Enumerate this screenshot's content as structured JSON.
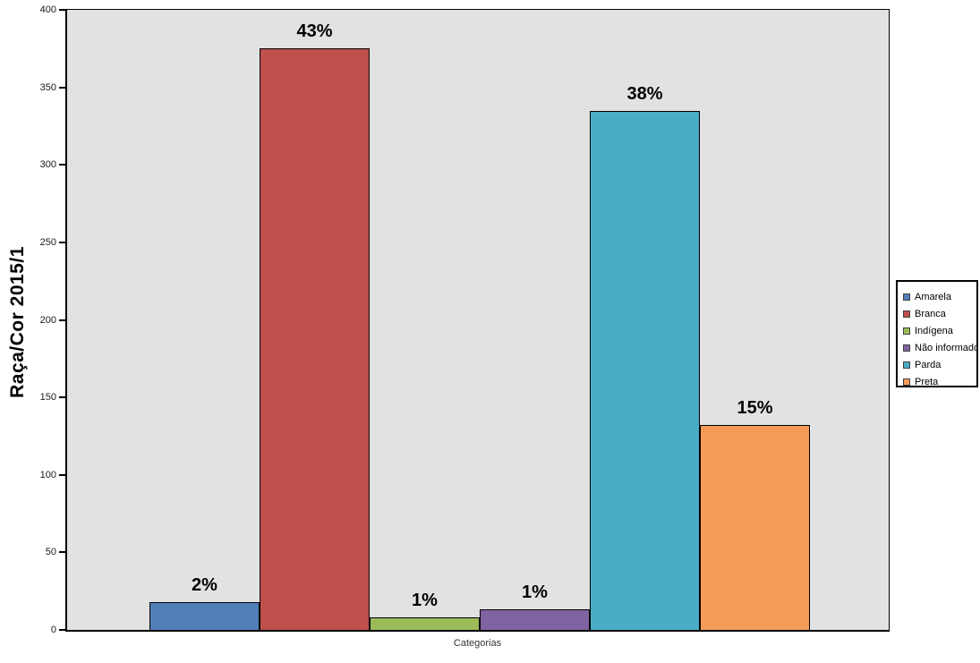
{
  "chart_data": {
    "type": "bar",
    "categories": [
      "Amarela",
      "Branca",
      "Indígena",
      "Não informado",
      "Parda",
      "Preta"
    ],
    "values": [
      18,
      375,
      8,
      13,
      335,
      132
    ],
    "bar_labels": [
      "2%",
      "43%",
      "1%",
      "1%",
      "38%",
      "15%"
    ],
    "colors": [
      "#527FB8",
      "#C0504D",
      "#9BBB59",
      "#8064A2",
      "#4AACC5",
      "#F49B58"
    ],
    "title": "",
    "xlabel": "Categorias",
    "ylabel": "Raça/Cor 2015/1",
    "ylim": [
      0,
      400
    ],
    "yticks": [
      0,
      50,
      100,
      150,
      200,
      250,
      300,
      350,
      400
    ],
    "grid": false,
    "legend_position": "right",
    "legend_entries": [
      "Amarela",
      "Branca",
      "Indígena",
      "Não informado",
      "Parda",
      "Preta"
    ],
    "plot_background": "#E2E2E2",
    "outer_background": "#FFFFFF",
    "bar_border_color": "#000000"
  }
}
